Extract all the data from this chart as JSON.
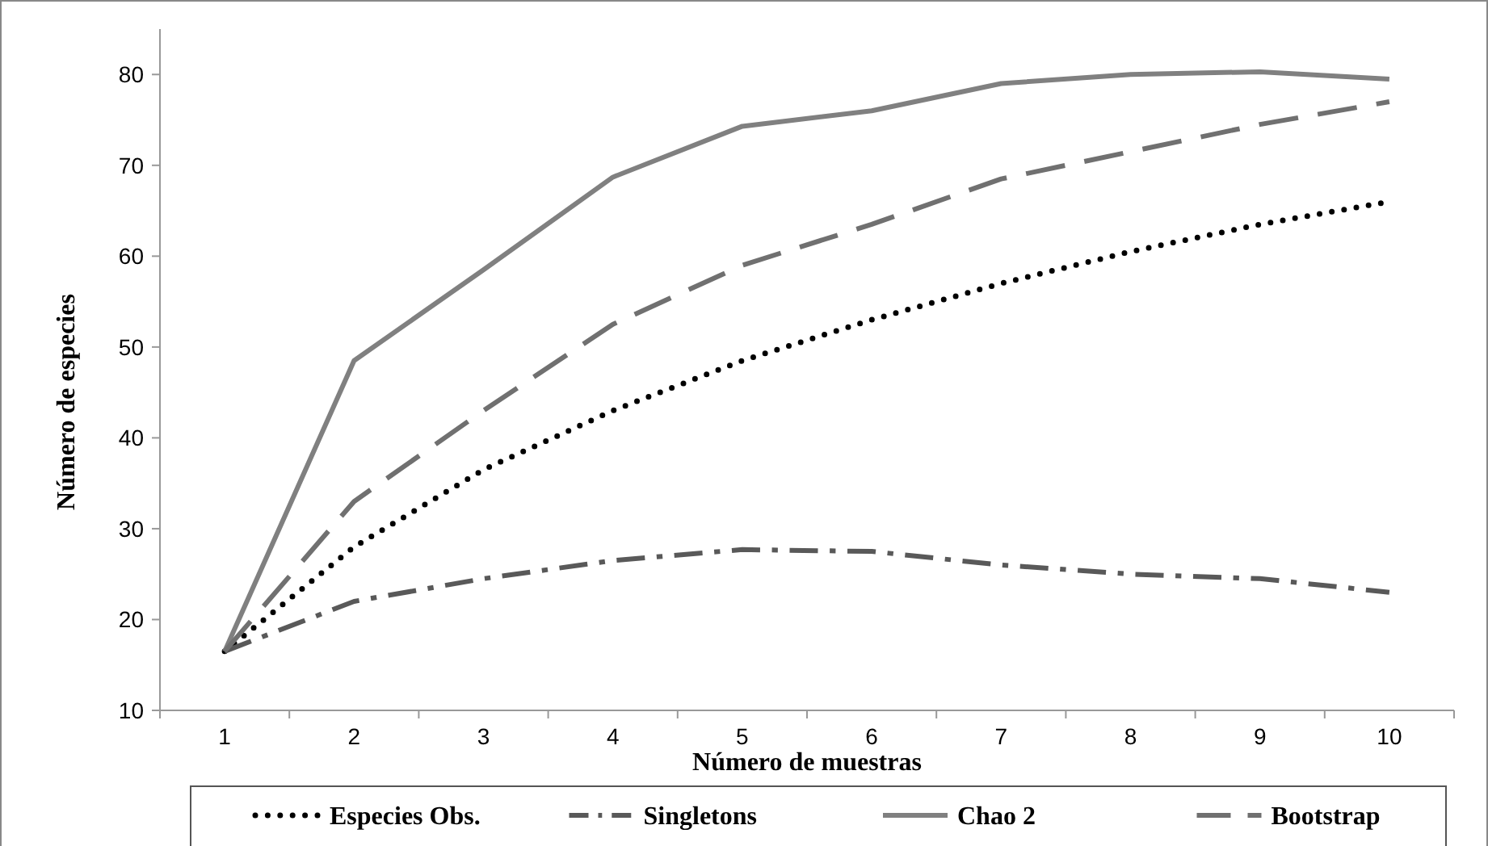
{
  "chart_data": {
    "type": "line",
    "xlabel": "Número de muestras",
    "ylabel": "Número de especies",
    "categories": [
      "1",
      "2",
      "3",
      "4",
      "5",
      "6",
      "7",
      "8",
      "9",
      "10"
    ],
    "ylim": [
      10,
      85
    ],
    "yticks": [
      10,
      20,
      30,
      40,
      50,
      60,
      70,
      80
    ],
    "grid": false,
    "legend": "bottom",
    "marker": "none",
    "series": [
      {
        "name": "Especies Obs.",
        "color": "#000000",
        "line_style": "dotted",
        "values": [
          16.5,
          28,
          36.5,
          43,
          48.5,
          53,
          57,
          60.5,
          63.5,
          66
        ]
      },
      {
        "name": "Singletons",
        "color": "#595959",
        "line_style": "dashdot",
        "values": [
          16.5,
          22,
          24.5,
          26.5,
          27.7,
          27.5,
          26,
          25,
          24.5,
          23
        ]
      },
      {
        "name": "Chao 2",
        "color": "#808080",
        "line_style": "solid",
        "values": [
          16.5,
          48.5,
          58.5,
          68.7,
          74.3,
          76,
          79,
          80,
          80.3,
          79.5
        ]
      },
      {
        "name": "Bootstrap",
        "color": "#707070",
        "line_style": "dashed",
        "values": [
          16.5,
          33,
          43,
          52.5,
          59,
          63.5,
          68.5,
          71.5,
          74.5,
          77
        ]
      }
    ]
  }
}
